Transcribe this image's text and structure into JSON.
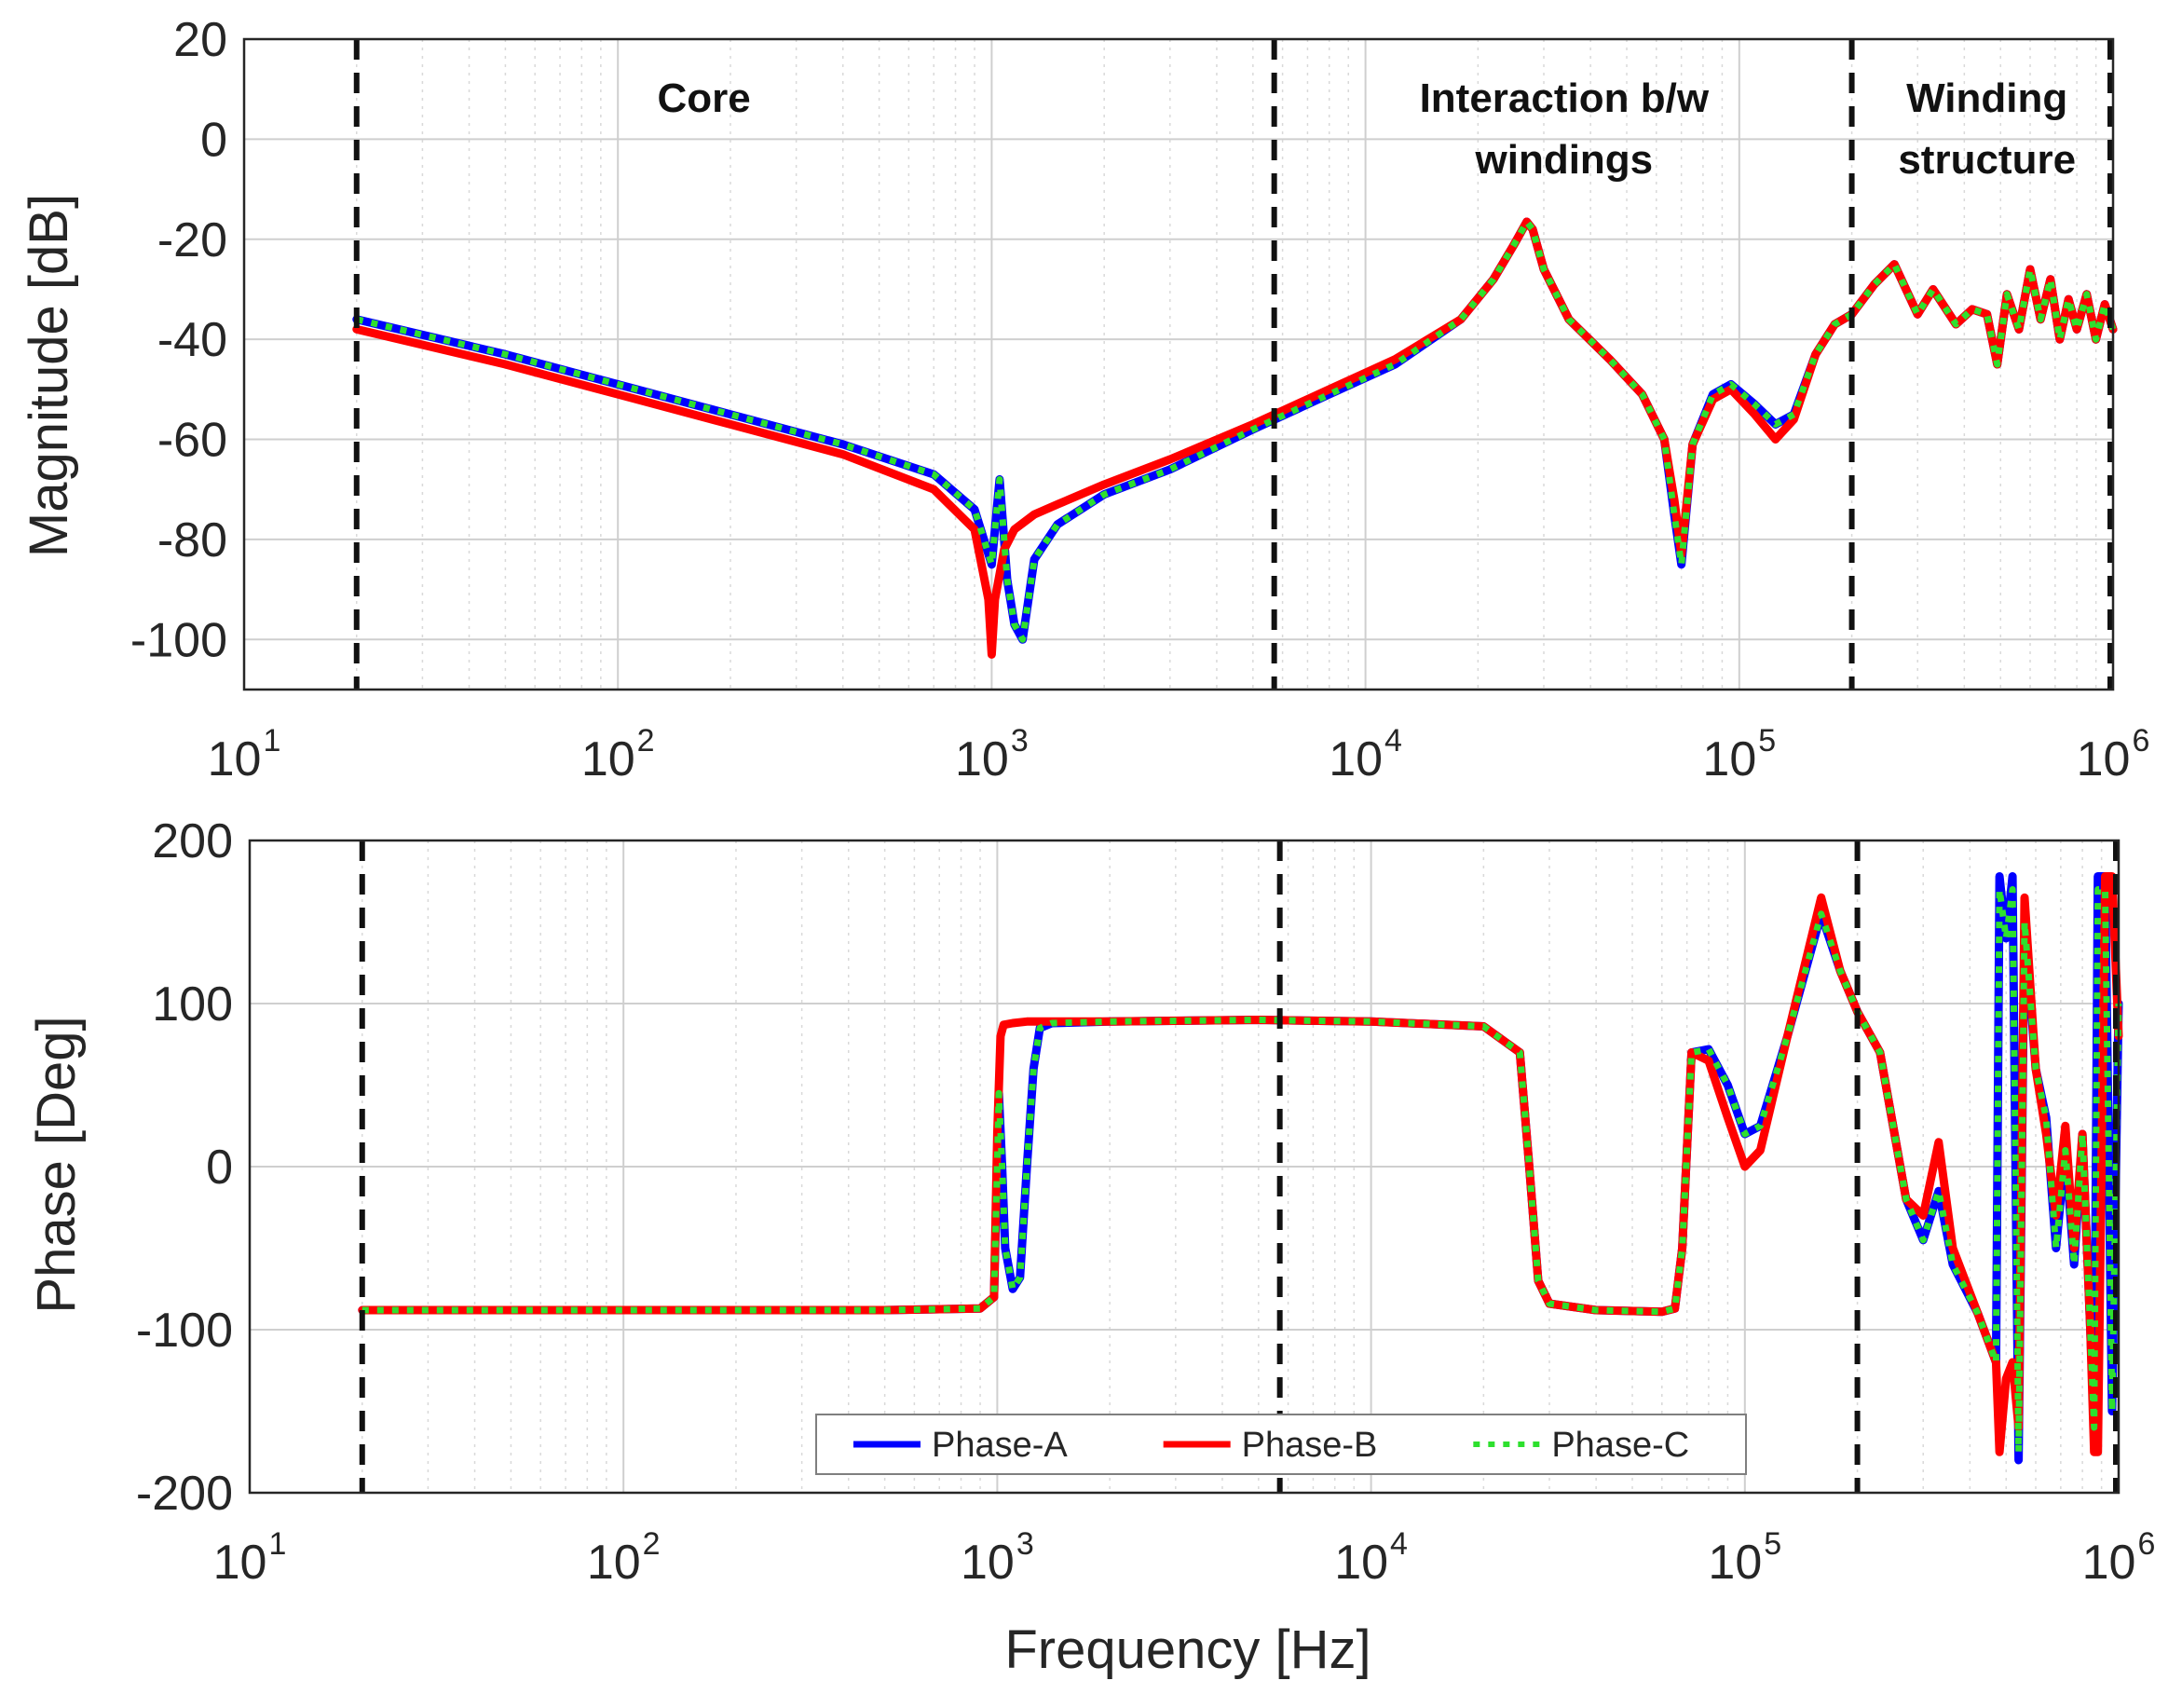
{
  "chart_data": [
    {
      "type": "line",
      "panel": "magnitude",
      "title": "",
      "xlabel": "",
      "ylabel": "Magnitude [dB]",
      "xscale": "log",
      "xlim": [
        10,
        1000000
      ],
      "ylim": [
        -110,
        20
      ],
      "yticks": [
        20,
        0,
        -20,
        -40,
        -60,
        -80,
        -100
      ],
      "xticks": [
        {
          "base": "10",
          "exp": "1"
        },
        {
          "base": "10",
          "exp": "2"
        },
        {
          "base": "10",
          "exp": "3"
        },
        {
          "base": "10",
          "exp": "4"
        },
        {
          "base": "10",
          "exp": "5"
        },
        {
          "base": "10",
          "exp": "6"
        }
      ],
      "grid": true,
      "region_boundaries_hz": [
        20,
        5700,
        200000,
        1000000
      ],
      "region_labels": [
        {
          "lines": [
            "Core"
          ],
          "x_hz": 170
        },
        {
          "lines": [
            "Interaction b/w",
            "windings"
          ],
          "x_hz": 34000
        },
        {
          "lines": [
            "Winding",
            "structure"
          ],
          "x_hz": 460000
        }
      ],
      "series": [
        {
          "name": "Phase-A",
          "color": "#0000ff",
          "style": "solid",
          "x": [
            20,
            50,
            100,
            200,
            400,
            700,
            900,
            1000,
            1050,
            1100,
            1150,
            1210,
            1300,
            1500,
            2000,
            3000,
            5000,
            8000,
            12000,
            18000,
            22000,
            25000,
            27000,
            28000,
            30000,
            35000,
            45000,
            55000,
            63000,
            67000,
            70000,
            75000,
            85000,
            95000,
            110000,
            125000,
            140000,
            160000,
            180000,
            200000,
            230000,
            260000,
            300000,
            330000,
            380000,
            420000,
            460000,
            490000,
            520000,
            560000,
            600000,
            640000,
            680000,
            720000,
            760000,
            800000,
            850000,
            900000,
            950000,
            1000000
          ],
          "values": [
            -36,
            -43,
            -49,
            -55,
            -61,
            -67,
            -74,
            -85,
            -68,
            -88,
            -97,
            -100,
            -84,
            -77,
            -71,
            -66,
            -58,
            -51,
            -45,
            -36,
            -28,
            -21,
            -16.5,
            -18,
            -26,
            -36,
            -44,
            -51,
            -60,
            -75,
            -85,
            -61,
            -51,
            -49,
            -53,
            -57,
            -55,
            -43,
            -37,
            -35,
            -29,
            -25,
            -35,
            -30,
            -37,
            -34,
            -35,
            -45,
            -31,
            -38,
            -26,
            -36,
            -28,
            -40,
            -32,
            -38,
            -31,
            -40,
            -33,
            -38
          ]
        },
        {
          "name": "Phase-B",
          "color": "#ff0000",
          "style": "solid",
          "x": [
            20,
            50,
            100,
            200,
            400,
            700,
            900,
            980,
            1000,
            1020,
            1080,
            1150,
            1300,
            1500,
            2000,
            3000,
            5000,
            8000,
            12000,
            18000,
            22000,
            25000,
            27000,
            28000,
            30000,
            35000,
            45000,
            55000,
            63000,
            67000,
            70000,
            75000,
            85000,
            95000,
            110000,
            125000,
            140000,
            160000,
            180000,
            200000,
            230000,
            260000,
            300000,
            330000,
            380000,
            420000,
            460000,
            490000,
            520000,
            560000,
            600000,
            640000,
            680000,
            720000,
            760000,
            800000,
            850000,
            900000,
            950000,
            1000000
          ],
          "values": [
            -38,
            -45,
            -51,
            -57,
            -63,
            -70,
            -78,
            -92,
            -103,
            -92,
            -82,
            -78,
            -75,
            -73,
            -69,
            -64,
            -57,
            -50,
            -44,
            -36,
            -28,
            -21,
            -16.5,
            -18,
            -26,
            -36,
            -44,
            -51,
            -60,
            -72,
            -83,
            -61,
            -52,
            -50,
            -55,
            -60,
            -56,
            -43,
            -37,
            -35,
            -29,
            -25,
            -35,
            -30,
            -37,
            -34,
            -35,
            -45,
            -31,
            -38,
            -26,
            -36,
            -28,
            -40,
            -32,
            -38,
            -31,
            -40,
            -33,
            -38
          ]
        },
        {
          "name": "Phase-C",
          "color": "#2ee02e",
          "style": "dotted",
          "x": [
            20,
            50,
            100,
            200,
            400,
            700,
            900,
            1000,
            1050,
            1100,
            1150,
            1210,
            1300,
            1500,
            2000,
            3000,
            5000,
            8000,
            12000,
            18000,
            22000,
            25000,
            27000,
            28000,
            30000,
            35000,
            45000,
            55000,
            63000,
            67000,
            70000,
            75000,
            85000,
            95000,
            110000,
            125000,
            140000,
            160000,
            180000,
            200000,
            230000,
            260000,
            300000,
            330000,
            380000,
            420000,
            460000,
            490000,
            520000,
            560000,
            600000,
            640000,
            680000,
            720000,
            760000,
            800000,
            850000,
            900000,
            950000,
            1000000
          ],
          "values": [
            -36,
            -43,
            -49,
            -55,
            -61,
            -67,
            -74,
            -85,
            -68,
            -88,
            -97,
            -100,
            -84,
            -77,
            -71,
            -66,
            -58,
            -51,
            -45,
            -36,
            -28,
            -21,
            -16.5,
            -18,
            -26,
            -36,
            -44,
            -51,
            -60,
            -75,
            -85,
            -61,
            -51,
            -49,
            -53,
            -57,
            -55,
            -43,
            -37,
            -35,
            -29,
            -25,
            -35,
            -30,
            -37,
            -34,
            -35,
            -45,
            -31,
            -38,
            -26,
            -36,
            -28,
            -40,
            -32,
            -38,
            -31,
            -40,
            -33,
            -38
          ]
        }
      ]
    },
    {
      "type": "line",
      "panel": "phase",
      "title": "",
      "xlabel": "Frequency [Hz]",
      "ylabel": "Phase [Deg]",
      "xscale": "log",
      "xlim": [
        10,
        1000000
      ],
      "ylim": [
        -200,
        200
      ],
      "yticks": [
        200,
        100,
        0,
        -100,
        -200
      ],
      "xticks": [
        {
          "base": "10",
          "exp": "1"
        },
        {
          "base": "10",
          "exp": "2"
        },
        {
          "base": "10",
          "exp": "3"
        },
        {
          "base": "10",
          "exp": "4"
        },
        {
          "base": "10",
          "exp": "5"
        },
        {
          "base": "10",
          "exp": "6"
        }
      ],
      "grid": true,
      "region_boundaries_hz": [
        20,
        5700,
        200000,
        1000000
      ],
      "legend": {
        "placement": "bottom-center",
        "orientation": "horizontal",
        "entries": [
          "Phase-A",
          "Phase-B",
          "Phase-C"
        ]
      },
      "series": [
        {
          "name": "Phase-A",
          "color": "#0000ff",
          "style": "solid",
          "x": [
            20,
            100,
            500,
            900,
            980,
            1010,
            1030,
            1050,
            1100,
            1150,
            1200,
            1250,
            1300,
            1400,
            2000,
            5000,
            10000,
            20000,
            25000,
            26500,
            28000,
            30000,
            40000,
            60000,
            65000,
            68000,
            72000,
            80000,
            90000,
            100000,
            110000,
            130000,
            160000,
            180000,
            200000,
            230000,
            270000,
            300000,
            330000,
            360000,
            420000,
            470000,
            480000,
            500000,
            520000,
            540000,
            560000,
            600000,
            640000,
            680000,
            720000,
            760000,
            800000,
            840000,
            860000,
            880000,
            920000,
            960000,
            1000000
          ],
          "values": [
            -88,
            -88,
            -88,
            -87,
            -80,
            45,
            0,
            -50,
            -75,
            -68,
            0,
            60,
            85,
            88,
            89,
            90,
            89,
            86,
            70,
            0,
            -70,
            -84,
            -88,
            -89,
            -87,
            -50,
            70,
            72,
            50,
            20,
            25,
            80,
            155,
            120,
            95,
            70,
            -20,
            -45,
            -15,
            -60,
            -90,
            -120,
            178,
            140,
            178,
            -180,
            150,
            60,
            30,
            -50,
            10,
            -60,
            20,
            -100,
            -160,
            178,
            178,
            -150,
            100
          ]
        },
        {
          "name": "Phase-B",
          "color": "#ff0000",
          "style": "solid",
          "x": [
            20,
            100,
            500,
            900,
            980,
            1000,
            1020,
            1040,
            1100,
            1200,
            1400,
            2000,
            5000,
            10000,
            20000,
            25000,
            26500,
            28000,
            30000,
            40000,
            60000,
            65000,
            68000,
            72000,
            80000,
            90000,
            100000,
            110000,
            130000,
            160000,
            180000,
            200000,
            230000,
            270000,
            300000,
            330000,
            360000,
            420000,
            470000,
            480000,
            500000,
            520000,
            540000,
            560000,
            600000,
            640000,
            680000,
            720000,
            760000,
            800000,
            840000,
            860000,
            880000,
            920000,
            960000,
            1000000
          ],
          "values": [
            -88,
            -88,
            -88,
            -87,
            -80,
            20,
            80,
            87,
            88,
            89,
            89,
            89,
            90,
            89,
            86,
            70,
            0,
            -70,
            -84,
            -88,
            -89,
            -87,
            -50,
            70,
            65,
            30,
            0,
            10,
            80,
            165,
            120,
            95,
            70,
            -20,
            -30,
            15,
            -50,
            -90,
            -120,
            -175,
            -130,
            -120,
            -160,
            165,
            60,
            20,
            -30,
            25,
            -50,
            20,
            -100,
            -175,
            -175,
            178,
            178,
            80
          ]
        },
        {
          "name": "Phase-C",
          "color": "#2ee02e",
          "style": "dotted",
          "x": [
            20,
            100,
            500,
            900,
            980,
            1010,
            1030,
            1050,
            1100,
            1150,
            1200,
            1250,
            1300,
            1400,
            2000,
            5000,
            10000,
            20000,
            25000,
            26500,
            28000,
            30000,
            40000,
            60000,
            65000,
            68000,
            72000,
            80000,
            90000,
            100000,
            110000,
            130000,
            160000,
            180000,
            200000,
            230000,
            270000,
            300000,
            330000,
            360000,
            420000,
            470000,
            480000,
            500000,
            520000,
            540000,
            560000,
            600000,
            640000,
            680000,
            720000,
            760000,
            800000,
            840000,
            860000,
            880000,
            920000,
            960000,
            1000000
          ],
          "values": [
            -88,
            -88,
            -88,
            -87,
            -80,
            45,
            0,
            -50,
            -75,
            -68,
            0,
            60,
            85,
            88,
            89,
            90,
            89,
            86,
            70,
            0,
            -70,
            -84,
            -88,
            -89,
            -87,
            -50,
            70,
            72,
            50,
            20,
            25,
            80,
            155,
            120,
            95,
            70,
            -20,
            -45,
            -15,
            -60,
            -90,
            -120,
            170,
            140,
            170,
            -175,
            150,
            60,
            30,
            -50,
            10,
            -60,
            20,
            -100,
            -160,
            170,
            170,
            -150,
            100
          ]
        }
      ]
    }
  ]
}
